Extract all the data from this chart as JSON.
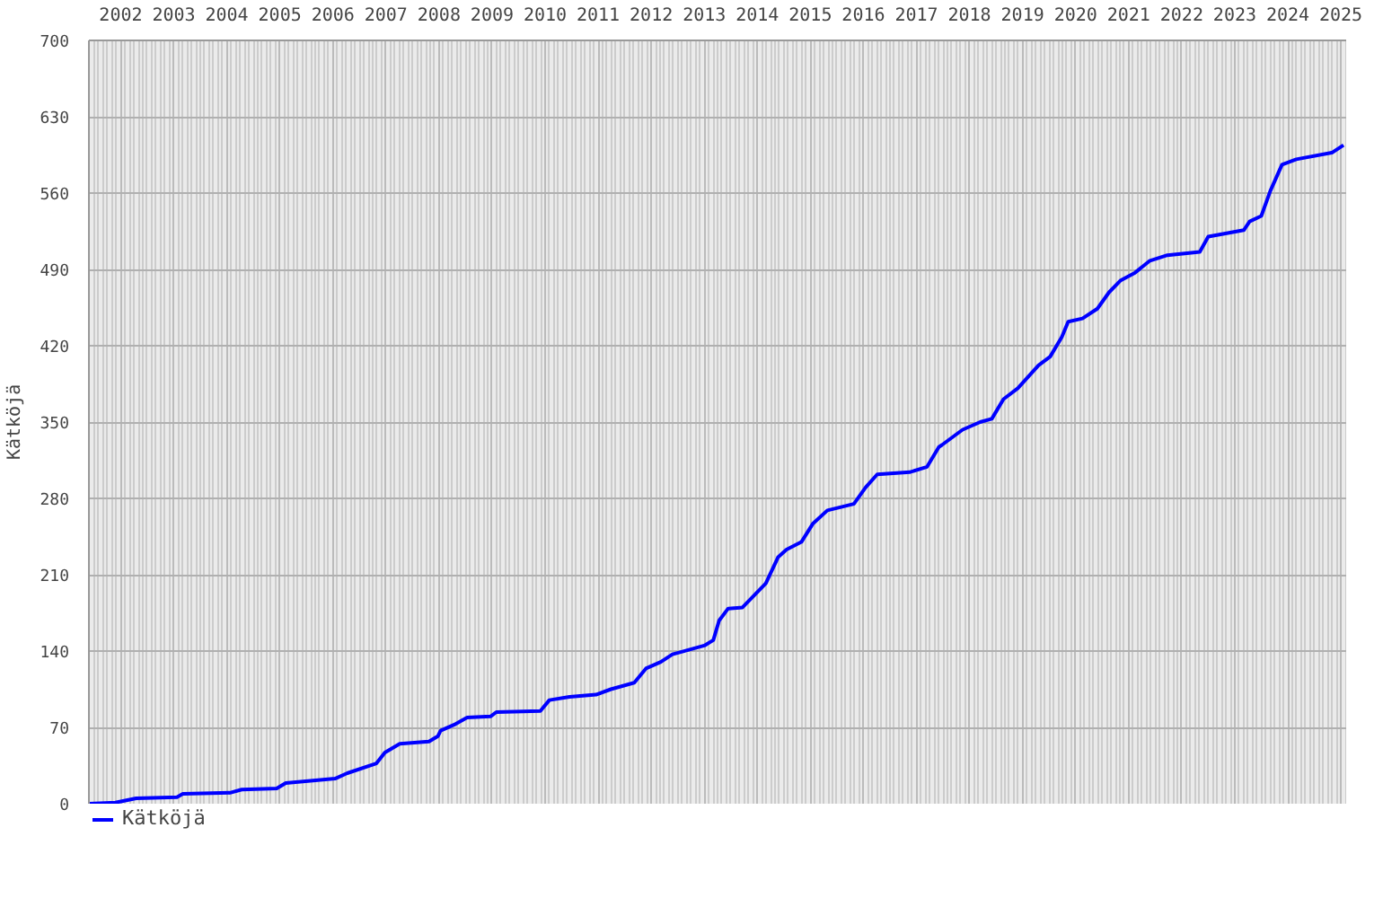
{
  "chart_data": {
    "type": "line",
    "ylabel": "Kätköjä",
    "xlim": [
      2001.4,
      2025.1
    ],
    "xticks": [
      2002,
      2003,
      2004,
      2005,
      2006,
      2007,
      2008,
      2009,
      2010,
      2011,
      2012,
      2013,
      2014,
      2015,
      2016,
      2017,
      2018,
      2019,
      2020,
      2021,
      2022,
      2023,
      2024,
      2025
    ],
    "ylim": [
      0,
      700
    ],
    "yticks": [
      0,
      70,
      140,
      210,
      280,
      350,
      420,
      490,
      560,
      630,
      700
    ],
    "grid": true,
    "legend": "bottom left",
    "line_style": "solid",
    "series": [
      {
        "name": "Kätköjä",
        "color": "#0000ff",
        "x": [
          2001.4,
          2001.9,
          2002.29,
          2003.06,
          2003.17,
          2004.06,
          2004.28,
          2004.94,
          2005.11,
          2006.04,
          2006.27,
          2006.82,
          2006.98,
          2007.26,
          2007.81,
          2007.98,
          2008.03,
          2008.31,
          2008.53,
          2008.97,
          2009.08,
          2009.91,
          2010.08,
          2010.46,
          2010.96,
          2011.24,
          2011.68,
          2011.9,
          2012.18,
          2012.4,
          2013.0,
          2013.17,
          2013.28,
          2013.45,
          2013.72,
          2014.0,
          2014.16,
          2014.39,
          2014.55,
          2014.83,
          2015.05,
          2015.32,
          2015.82,
          2016.04,
          2016.26,
          2016.87,
          2017.2,
          2017.42,
          2017.48,
          2017.87,
          2018.2,
          2018.42,
          2018.64,
          2018.91,
          2019.3,
          2019.52,
          2019.74,
          2019.86,
          2020.13,
          2020.41,
          2020.63,
          2020.85,
          2021.12,
          2021.4,
          2021.73,
          2022.34,
          2022.5,
          2023.17,
          2023.28,
          2023.5,
          2023.67,
          2023.89,
          2024.16,
          2024.83,
          2025.05
        ],
        "values": [
          0,
          1,
          5,
          6,
          9,
          10,
          13,
          14,
          19,
          23,
          28,
          37,
          47,
          55,
          57,
          62,
          67,
          73,
          79,
          80,
          84,
          85,
          95,
          98,
          100,
          105,
          111,
          124,
          130,
          137,
          145,
          150,
          168,
          179,
          180,
          194,
          202,
          226,
          233,
          240,
          257,
          269,
          275,
          290,
          302,
          304,
          309,
          327,
          329,
          343,
          350,
          353,
          371,
          381,
          402,
          410,
          428,
          442,
          445,
          454,
          469,
          480,
          487,
          498,
          503,
          506,
          520,
          526,
          534,
          539,
          562,
          586,
          591,
          597,
          604
        ]
      }
    ]
  }
}
